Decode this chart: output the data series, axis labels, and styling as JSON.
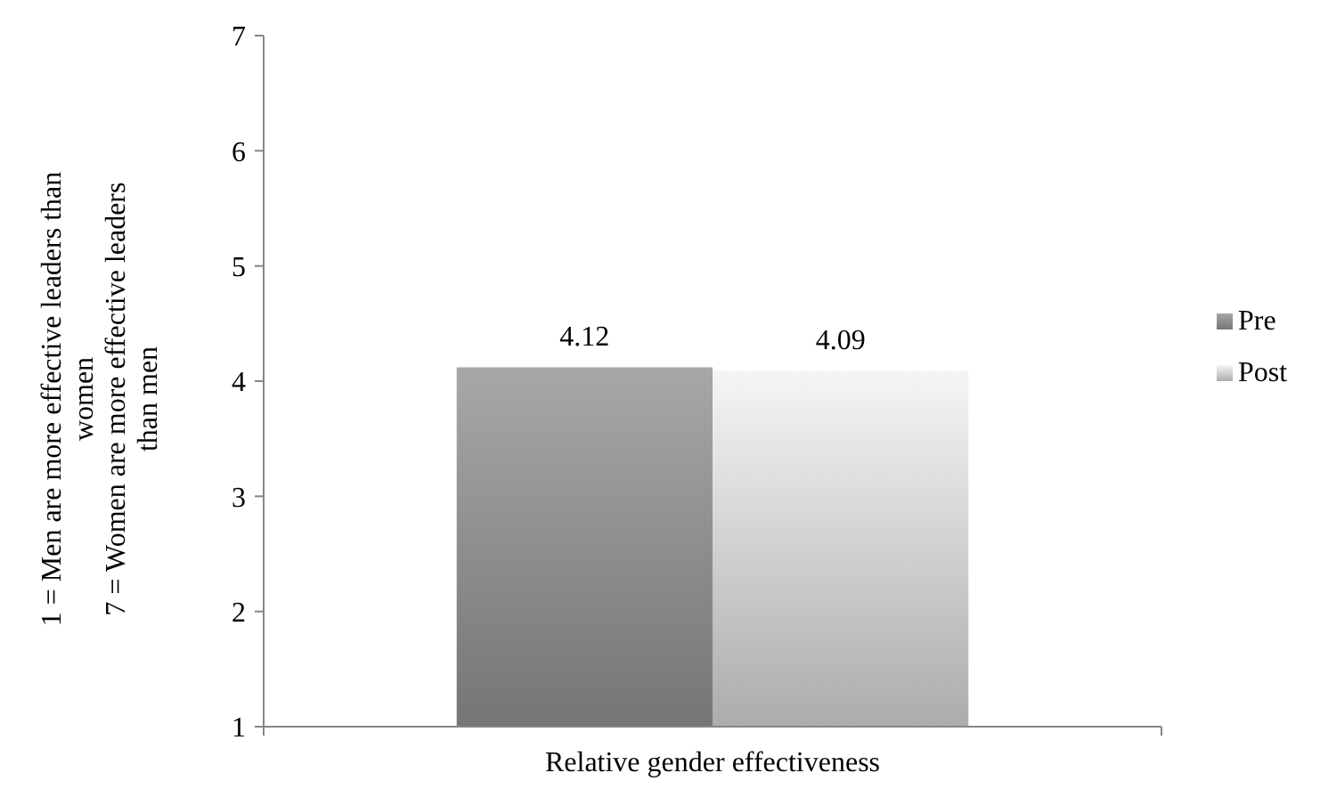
{
  "chart_data": {
    "type": "bar",
    "categories": [
      "Relative gender effectiveness"
    ],
    "series": [
      {
        "name": "Pre",
        "color": "#8c8c8c",
        "values": [
          4.12
        ]
      },
      {
        "name": "Post",
        "color": "#cdcdcd",
        "values": [
          4.09
        ]
      }
    ],
    "ylabel": "1 = Men are more effective leaders than women\n7 = Women are more effective leaders than men",
    "ylim": [
      1,
      7
    ],
    "yticks": [
      1,
      2,
      3,
      4,
      5,
      6,
      7
    ],
    "data_labels": true,
    "legend": "right",
    "grid": false
  }
}
